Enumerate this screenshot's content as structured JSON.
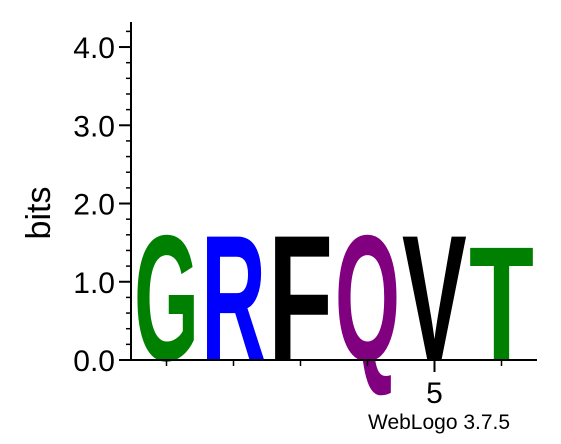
{
  "chart_data": {
    "type": "sequence-logo",
    "ylabel": "bits",
    "ylim": [
      0,
      4.32
    ],
    "y_ticks": [
      "0.0",
      "1.0",
      "2.0",
      "3.0",
      "4.0"
    ],
    "x_ticks": [
      "5"
    ],
    "positions": [
      {
        "position": 1,
        "letter": "G",
        "bits": 1.65,
        "color": "#008000"
      },
      {
        "position": 2,
        "letter": "R",
        "bits": 1.65,
        "color": "#0000ff"
      },
      {
        "position": 3,
        "letter": "F",
        "bits": 1.65,
        "color": "#000000"
      },
      {
        "position": 4,
        "letter": "Q",
        "bits": 1.65,
        "color": "#800080"
      },
      {
        "position": 5,
        "letter": "V",
        "bits": 1.65,
        "color": "#000000"
      },
      {
        "position": 6,
        "letter": "T",
        "bits": 1.5,
        "color": "#008000"
      }
    ]
  },
  "credit": "WebLogo 3.7.5"
}
